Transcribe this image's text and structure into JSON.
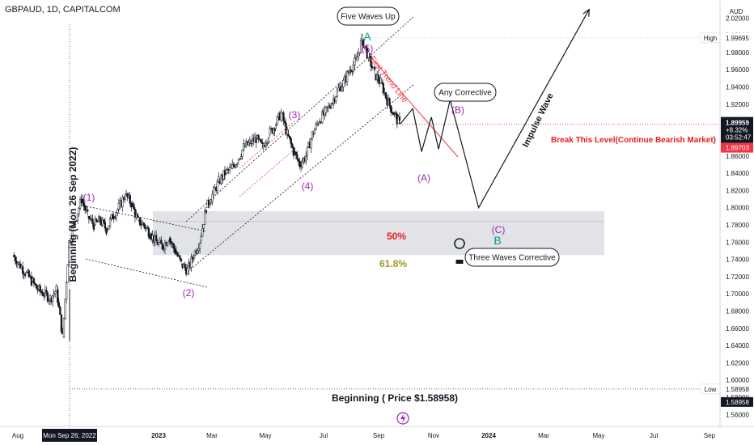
{
  "header": {
    "symbol_title": "GBPAUD, 1D, CAPITALCOM",
    "currency": "AUD"
  },
  "chart_data": {
    "type": "line",
    "symbol": "GBPAUD",
    "interval": "1D",
    "source": "CAPITALCOM",
    "ylim": [
      1.55,
      2.04
    ],
    "y_ticks": [
      1.56,
      1.58,
      1.6,
      1.62,
      1.64,
      1.66,
      1.68,
      1.7,
      1.72,
      1.74,
      1.76,
      1.78,
      1.8,
      1.82,
      1.84,
      1.86,
      1.88,
      1.9,
      1.92,
      1.94,
      1.96,
      1.98,
      2.0,
      2.02
    ],
    "y_tick_labels": [
      "1.56000",
      "1.58000",
      "1.60000",
      "1.62000",
      "1.64000",
      "1.66000",
      "1.68000",
      "1.70000",
      "1.72000",
      "1.74000",
      "1.76000",
      "1.78000",
      "1.80000",
      "1.82000",
      "1.84000",
      "1.86000",
      "1.88000",
      "1.90000",
      "1.92000",
      "1.94000",
      "1.96000",
      "1.98000",
      "2.00000",
      "2.02000"
    ],
    "x_tick_labels": [
      "Aug",
      "Mon Sep 26, 2022",
      "2023",
      "Mar",
      "May",
      "Jul",
      "Sep",
      "Nov",
      "2024",
      "Mar",
      "May",
      "Jul",
      "Sep"
    ],
    "price_path": [
      [
        "2022-08-01",
        1.745
      ],
      [
        "2022-08-08",
        1.735
      ],
      [
        "2022-08-15",
        1.725
      ],
      [
        "2022-08-22",
        1.715
      ],
      [
        "2022-08-29",
        1.705
      ],
      [
        "2022-09-05",
        1.7
      ],
      [
        "2022-09-12",
        1.695
      ],
      [
        "2022-09-19",
        1.705
      ],
      [
        "2022-09-26",
        1.65
      ],
      [
        "2022-10-03",
        1.76
      ],
      [
        "2022-10-10",
        1.785
      ],
      [
        "2022-10-17",
        1.81
      ],
      [
        "2022-10-24",
        1.79
      ],
      [
        "2022-10-31",
        1.78
      ],
      [
        "2022-11-07",
        1.785
      ],
      [
        "2022-11-14",
        1.775
      ],
      [
        "2022-11-21",
        1.79
      ],
      [
        "2022-11-28",
        1.8
      ],
      [
        "2022-12-05",
        1.815
      ],
      [
        "2022-12-12",
        1.805
      ],
      [
        "2022-12-19",
        1.785
      ],
      [
        "2022-12-26",
        1.78
      ],
      [
        "2023-01-02",
        1.77
      ],
      [
        "2023-01-09",
        1.76
      ],
      [
        "2023-01-16",
        1.755
      ],
      [
        "2023-01-23",
        1.765
      ],
      [
        "2023-01-30",
        1.75
      ],
      [
        "2023-02-06",
        1.735
      ],
      [
        "2023-02-13",
        1.727
      ],
      [
        "2023-02-20",
        1.745
      ],
      [
        "2023-02-27",
        1.762
      ],
      [
        "2023-03-06",
        1.8
      ],
      [
        "2023-03-13",
        1.815
      ],
      [
        "2023-03-20",
        1.83
      ],
      [
        "2023-03-27",
        1.84
      ],
      [
        "2023-04-03",
        1.845
      ],
      [
        "2023-04-10",
        1.855
      ],
      [
        "2023-04-17",
        1.87
      ],
      [
        "2023-04-24",
        1.875
      ],
      [
        "2023-05-01",
        1.88
      ],
      [
        "2023-05-08",
        1.87
      ],
      [
        "2023-05-15",
        1.885
      ],
      [
        "2023-05-22",
        1.895
      ],
      [
        "2023-05-29",
        1.91
      ],
      [
        "2023-06-05",
        1.885
      ],
      [
        "2023-06-12",
        1.865
      ],
      [
        "2023-06-19",
        1.85
      ],
      [
        "2023-06-26",
        1.86
      ],
      [
        "2023-07-03",
        1.885
      ],
      [
        "2023-07-10",
        1.9
      ],
      [
        "2023-07-17",
        1.91
      ],
      [
        "2023-07-24",
        1.92
      ],
      [
        "2023-07-31",
        1.935
      ],
      [
        "2023-08-07",
        1.945
      ],
      [
        "2023-08-14",
        1.96
      ],
      [
        "2023-08-21",
        1.97
      ],
      [
        "2023-08-28",
        1.995
      ],
      [
        "2023-09-04",
        1.975
      ],
      [
        "2023-09-11",
        1.955
      ],
      [
        "2023-09-18",
        1.945
      ],
      [
        "2023-09-25",
        1.925
      ],
      [
        "2023-10-02",
        1.91
      ],
      [
        "2023-10-09",
        1.897
      ]
    ],
    "projection_path": [
      [
        "2023-10-09",
        1.897
      ],
      [
        "2023-10-23",
        1.915
      ],
      [
        "2023-11-02",
        1.865
      ],
      [
        "2023-11-13",
        1.905
      ],
      [
        "2023-11-21",
        1.868
      ],
      [
        "2023-12-04",
        1.925
      ],
      [
        "2024-01-05",
        1.8
      ],
      [
        "2024-05-08",
        2.03
      ]
    ],
    "price_scale_labels": [
      {
        "text": "High",
        "price": 1.99695,
        "label": "1.99695"
      },
      {
        "text": "Low",
        "price": 1.58958,
        "label": "1.58958"
      }
    ],
    "current_price": {
      "price": 1.89959,
      "label": "1.89959",
      "change": "+8.32%",
      "countdown": "03:52:47"
    },
    "secondary_price": {
      "price": 1.89703,
      "label": "1.89703"
    },
    "annotations": {
      "wave_1": "(1)",
      "wave_2": "(2)",
      "wave_3": "(3)",
      "wave_4": "(4)",
      "wave_5": "(5)",
      "wave_a": "(A)",
      "wave_b": "(B)",
      "wave_c": "(C)",
      "major_a": "A",
      "major_b": "B",
      "five_waves_up": "Five Waves Up",
      "any_corrective": "Any Corrective",
      "three_waves_corrective": "Three Waves Corrective",
      "first_trend_line": "First Trend Line",
      "impulse_wave": "Impulse Wave",
      "break_level": "Break This Level(Continue Bearish Market)",
      "fib_50": "50%",
      "fib_618": "61.8%",
      "beginning_vertical": "Beginning (Mon 26 Sep 2022)",
      "beginning_price": "Beginning ( Price $1.58958)"
    },
    "zone": {
      "top": 1.796,
      "bottom": 1.745
    },
    "break_level": 1.897
  },
  "colors": {
    "candle": "#131722",
    "wave_purple": "#9c27b0",
    "major_green": "#089981",
    "fib_red": "#e91e1e",
    "fib_olive": "#a09a20",
    "break_red": "#e91e1e",
    "trendline_red": "#f23645",
    "current_price_bg": "#131722",
    "secondary_price_bg": "#f23645"
  }
}
